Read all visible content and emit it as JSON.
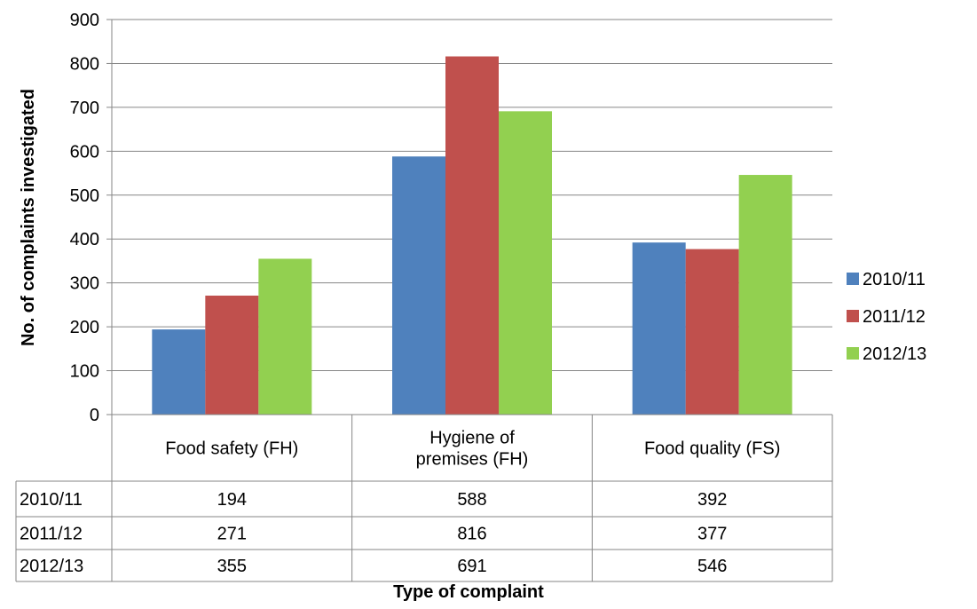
{
  "chart_data": {
    "type": "bar",
    "categories": [
      [
        "Food safety (FH)"
      ],
      [
        "Hygiene of",
        "premises (FH)"
      ],
      [
        "Food quality (FS)"
      ]
    ],
    "series": [
      {
        "name": "2010/11",
        "values": [
          194,
          588,
          392
        ],
        "color": "#4F81BD"
      },
      {
        "name": "2011/12",
        "values": [
          271,
          816,
          377
        ],
        "color": "#C0504D"
      },
      {
        "name": "2012/13",
        "values": [
          355,
          691,
          546
        ],
        "color": "#92D050"
      }
    ],
    "title": "",
    "xlabel": "Type of complaint",
    "ylabel": "No. of complaints investigated",
    "ylim": [
      0,
      900
    ],
    "ytick_step": 100,
    "grid": true,
    "legend_position": "right",
    "data_table": true
  }
}
